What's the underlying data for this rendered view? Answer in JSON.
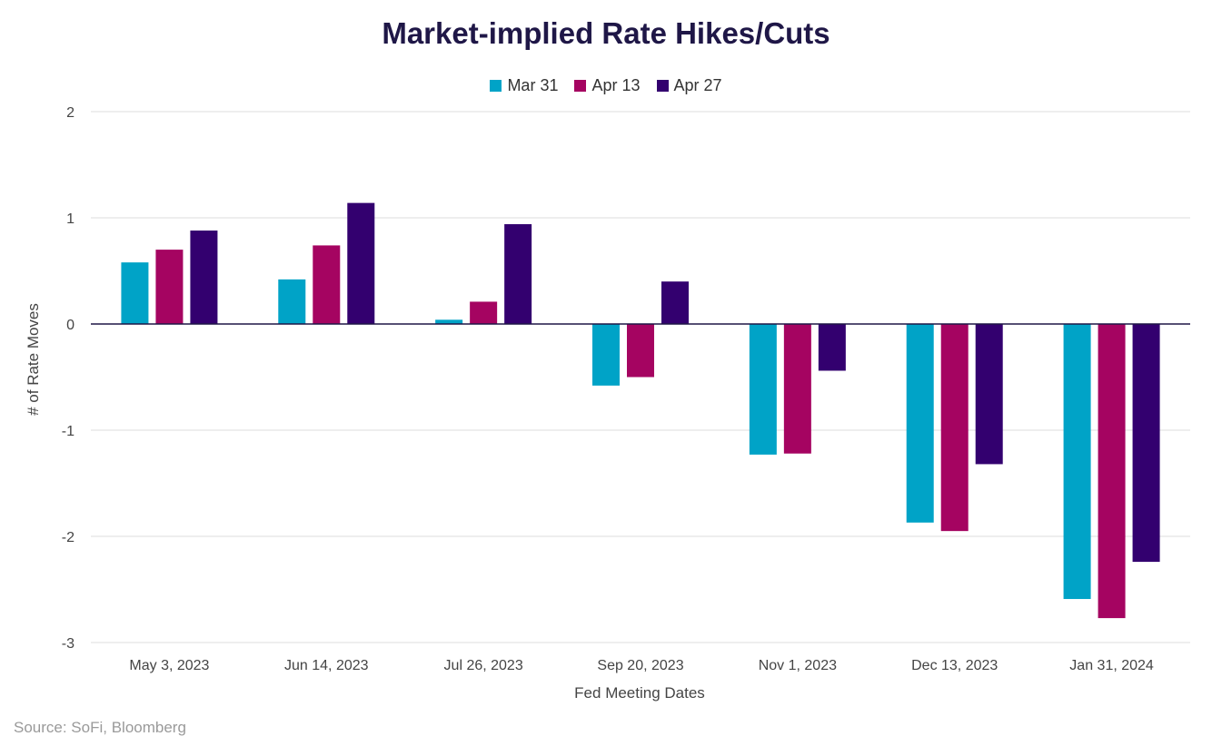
{
  "chart_data": {
    "type": "bar",
    "title": "Market-implied Rate Hikes/Cuts",
    "xlabel": "Fed Meeting Dates",
    "ylabel": "# of Rate Moves",
    "ylim": [
      -3,
      2
    ],
    "yticks": [
      2,
      1,
      0,
      -1,
      -2,
      -3
    ],
    "ytick_labels": [
      "2",
      "1",
      "0",
      "-1",
      "-2",
      "-3"
    ],
    "grid": true,
    "legend_position": "top-center",
    "categories": [
      "May 3, 2023",
      "Jun 14, 2023",
      "Jul 26, 2023",
      "Sep 20, 2023",
      "Nov 1, 2023",
      "Dec 13, 2023",
      "Jan 31, 2024"
    ],
    "series": [
      {
        "name": "Mar 31",
        "color": "#00a3c7",
        "values": [
          0.58,
          0.42,
          0.04,
          -0.58,
          -1.23,
          -1.87,
          -2.59
        ]
      },
      {
        "name": "Apr 13",
        "color": "#a50461",
        "values": [
          0.7,
          0.74,
          0.21,
          -0.5,
          -1.22,
          -1.95,
          -2.77
        ]
      },
      {
        "name": "Apr 27",
        "color": "#33006f",
        "values": [
          0.88,
          1.14,
          0.94,
          0.4,
          -0.44,
          -1.32,
          -2.24
        ]
      }
    ]
  },
  "source": "Source: SoFi, Bloomberg"
}
